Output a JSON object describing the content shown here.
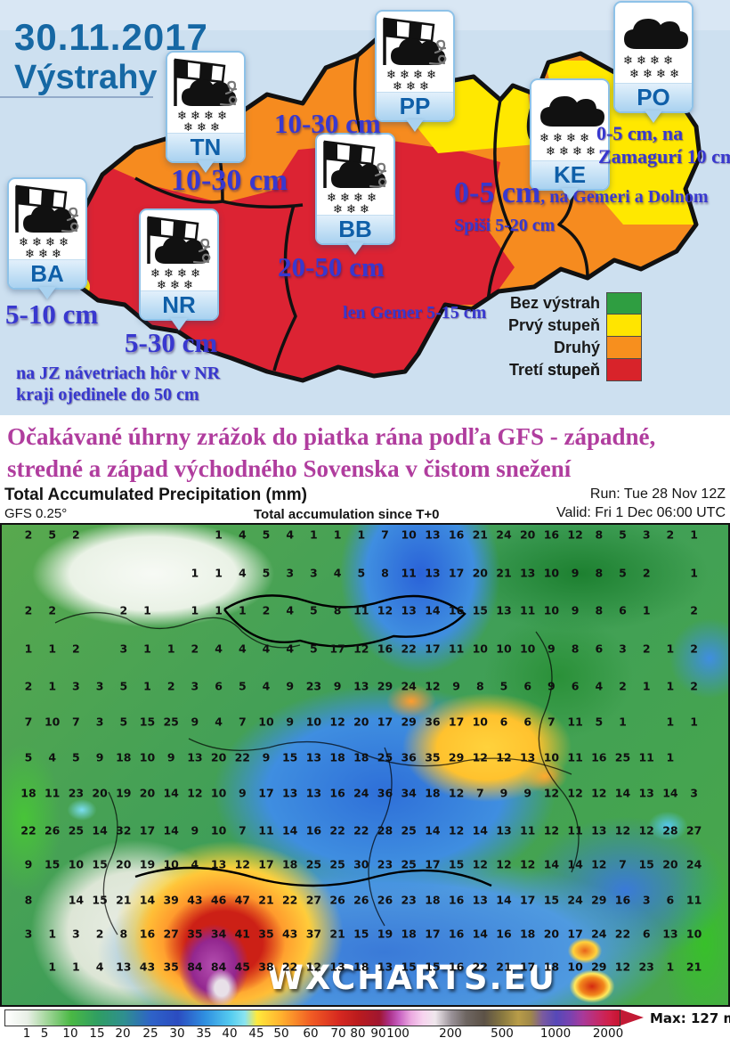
{
  "warning_panel": {
    "date": "30.11.2017",
    "title": "Výstrahy",
    "regions": [
      {
        "code": "BA",
        "icon": "windsock-snow-wind",
        "amount": "5-10 cm"
      },
      {
        "code": "TN",
        "icon": "windsock-snow-wind",
        "amount": "10-30 cm"
      },
      {
        "code": "NR",
        "icon": "windsock-snow-wind",
        "amount": "5-30 cm"
      },
      {
        "code": "BB",
        "icon": "windsock-snow-wind",
        "amount": "20-50 cm",
        "note": "len Gemer 5-15 cm"
      },
      {
        "code": "PP",
        "icon": "windsock-snow-wind",
        "amount": "10-30 cm"
      },
      {
        "code": "KE",
        "icon": "snow-cloud",
        "amount": "0-5 cm",
        "note": ", na Gemeri a Dolnom",
        "note2": "Spiši 5-20 cm"
      },
      {
        "code": "PO",
        "icon": "snow-cloud",
        "amount": "0-5 cm, na",
        "note": "Zamagurí 10 cm"
      }
    ],
    "footnote_line1": "na JZ návetriach hôr v NR",
    "footnote_line2": "kraji ojedinele do 50 cm",
    "legend": {
      "items": [
        {
          "label": "Bez výstrah",
          "color": "#2f9e41"
        },
        {
          "label": "Prvý stupeň",
          "color": "#ffe500"
        },
        {
          "label": "Druhý stupeň",
          "color": "#f78f1e"
        },
        {
          "label": "Tretí stupeň",
          "color": "#d8232a"
        }
      ]
    },
    "map_colors": {
      "level1": "#ffe800",
      "level2": "#f68b1f",
      "level3": "#dc2333",
      "background": "#cde0f0"
    }
  },
  "headline": {
    "line1": "Očakávané úhrny zrážok do piatka rána podľa GFS - západné,",
    "line2": "stredné a západ východného Sovenska v čistom snežení"
  },
  "chart_data": {
    "type": "heatmap",
    "title": "Total Accumulated Precipitation (mm)",
    "model": "GFS 0.25°",
    "subtitle": "Total accumulation since T+0",
    "run": "Run: Tue 28 Nov 12Z",
    "valid": "Valid: Fri 1 Dec 06:00 UTC",
    "watermark": "WXCHARTS.EU",
    "max_label": "Max: 127 mm",
    "colorbar_ticks": [
      "1",
      "5",
      "10",
      "15",
      "20",
      "25",
      "30",
      "35",
      "40",
      "45",
      "50",
      "60",
      "70",
      "80",
      "90",
      "100",
      "200",
      "500",
      "1000",
      "2000"
    ],
    "grid_values_mm": [
      [
        "2",
        "5",
        "2",
        "",
        "",
        "",
        "",
        "",
        "1",
        "4",
        "5",
        "4",
        "1",
        "1",
        "1",
        "7",
        "10",
        "13",
        "16",
        "21",
        "24",
        "20",
        "16",
        "12",
        "8",
        "5",
        "3",
        "2",
        "1"
      ],
      [
        "",
        "",
        "",
        "",
        "",
        "",
        "",
        "1",
        "1",
        "4",
        "5",
        "3",
        "3",
        "4",
        "5",
        "8",
        "11",
        "13",
        "17",
        "20",
        "21",
        "13",
        "10",
        "9",
        "8",
        "5",
        "2",
        "",
        "1"
      ],
      [
        "2",
        "2",
        "",
        "",
        "2",
        "1",
        "",
        "1",
        "1",
        "1",
        "2",
        "4",
        "5",
        "8",
        "11",
        "12",
        "13",
        "14",
        "16",
        "15",
        "13",
        "11",
        "10",
        "9",
        "8",
        "6",
        "1",
        "",
        "2"
      ],
      [
        "1",
        "1",
        "2",
        "",
        "3",
        "1",
        "1",
        "2",
        "4",
        "4",
        "4",
        "4",
        "5",
        "17",
        "12",
        "16",
        "22",
        "17",
        "11",
        "10",
        "10",
        "10",
        "9",
        "8",
        "6",
        "3",
        "2",
        "1",
        "2"
      ],
      [
        "2",
        "1",
        "3",
        "3",
        "5",
        "1",
        "2",
        "3",
        "6",
        "5",
        "4",
        "9",
        "23",
        "9",
        "13",
        "29",
        "24",
        "12",
        "9",
        "8",
        "5",
        "6",
        "9",
        "6",
        "4",
        "2",
        "1",
        "1",
        "2"
      ],
      [
        "7",
        "10",
        "7",
        "3",
        "5",
        "15",
        "25",
        "9",
        "4",
        "7",
        "10",
        "9",
        "10",
        "12",
        "20",
        "17",
        "29",
        "36",
        "17",
        "10",
        "6",
        "6",
        "7",
        "11",
        "5",
        "1",
        "",
        "1",
        "1"
      ],
      [
        "5",
        "4",
        "5",
        "9",
        "18",
        "10",
        "9",
        "13",
        "20",
        "22",
        "9",
        "15",
        "13",
        "18",
        "18",
        "25",
        "36",
        "35",
        "29",
        "12",
        "12",
        "13",
        "10",
        "11",
        "16",
        "25",
        "11",
        "1",
        ""
      ],
      [
        "18",
        "11",
        "23",
        "20",
        "19",
        "20",
        "14",
        "12",
        "10",
        "9",
        "17",
        "13",
        "13",
        "16",
        "24",
        "36",
        "34",
        "18",
        "12",
        "7",
        "9",
        "9",
        "12",
        "12",
        "12",
        "14",
        "13",
        "14",
        "3"
      ],
      [
        "22",
        "26",
        "25",
        "14",
        "32",
        "17",
        "14",
        "9",
        "10",
        "7",
        "11",
        "14",
        "16",
        "22",
        "22",
        "28",
        "25",
        "14",
        "12",
        "14",
        "13",
        "11",
        "12",
        "11",
        "13",
        "12",
        "12",
        "28",
        "27"
      ],
      [
        "9",
        "15",
        "10",
        "15",
        "20",
        "19",
        "10",
        "4",
        "13",
        "12",
        "17",
        "18",
        "25",
        "25",
        "30",
        "23",
        "25",
        "17",
        "15",
        "12",
        "12",
        "12",
        "14",
        "14",
        "12",
        "7",
        "15",
        "20",
        "24"
      ],
      [
        "8",
        "",
        "14",
        "15",
        "21",
        "14",
        "39",
        "43",
        "46",
        "47",
        "21",
        "22",
        "27",
        "26",
        "26",
        "26",
        "23",
        "18",
        "16",
        "13",
        "14",
        "17",
        "15",
        "24",
        "29",
        "16",
        "3",
        "6",
        "11"
      ],
      [
        "3",
        "1",
        "3",
        "2",
        "8",
        "16",
        "27",
        "35",
        "34",
        "41",
        "35",
        "43",
        "37",
        "21",
        "15",
        "19",
        "18",
        "17",
        "16",
        "14",
        "16",
        "18",
        "20",
        "17",
        "24",
        "22",
        "6",
        "13",
        "10"
      ],
      [
        "",
        "1",
        "1",
        "4",
        "13",
        "43",
        "35",
        "84",
        "84",
        "45",
        "38",
        "22",
        "12",
        "13",
        "18",
        "13",
        "15",
        "15",
        "16",
        "22",
        "21",
        "17",
        "18",
        "10",
        "29",
        "12",
        "23",
        "1",
        "21"
      ]
    ]
  }
}
